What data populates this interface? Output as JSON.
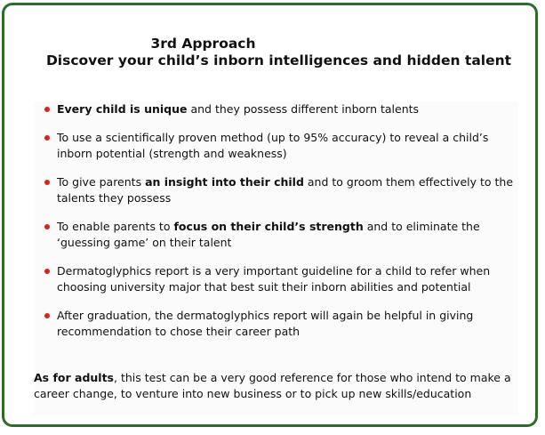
{
  "heading": {
    "line1": "3rd Approach",
    "line2": "Discover your child’s inborn intelligences and hidden talent"
  },
  "points": [
    {
      "bold": "Every child is unique",
      "after": " and they possess different inborn talents"
    },
    {
      "text": "To use a scientifically proven method (up to 95% accuracy) to reveal a child’s inborn potential (strength and weakness)"
    },
    {
      "before": "To give parents ",
      "bold": "an insight into their child",
      "after": " and to groom them effectively to the talents they possess"
    },
    {
      "before": "To enable parents to ",
      "bold": "focus on their child’s strength",
      "after": " and to eliminate the ‘guessing game’ on their talent"
    },
    {
      "text": "Dermatoglyphics report is a very important guideline for a child to refer when choosing university major that best suit their inborn abilities and potential"
    },
    {
      "text": "After graduation, the dermatoglyphics report will again be helpful in giving recommendation to chose their career path"
    }
  ],
  "adults": {
    "bold": "As for adults",
    "rest": ", this test can be a very good reference for those who intend to make a career change, to venture into new business or to pick up new skills/education"
  },
  "colors": {
    "border": "#2f6b2a",
    "bullet": "#d9231c"
  }
}
